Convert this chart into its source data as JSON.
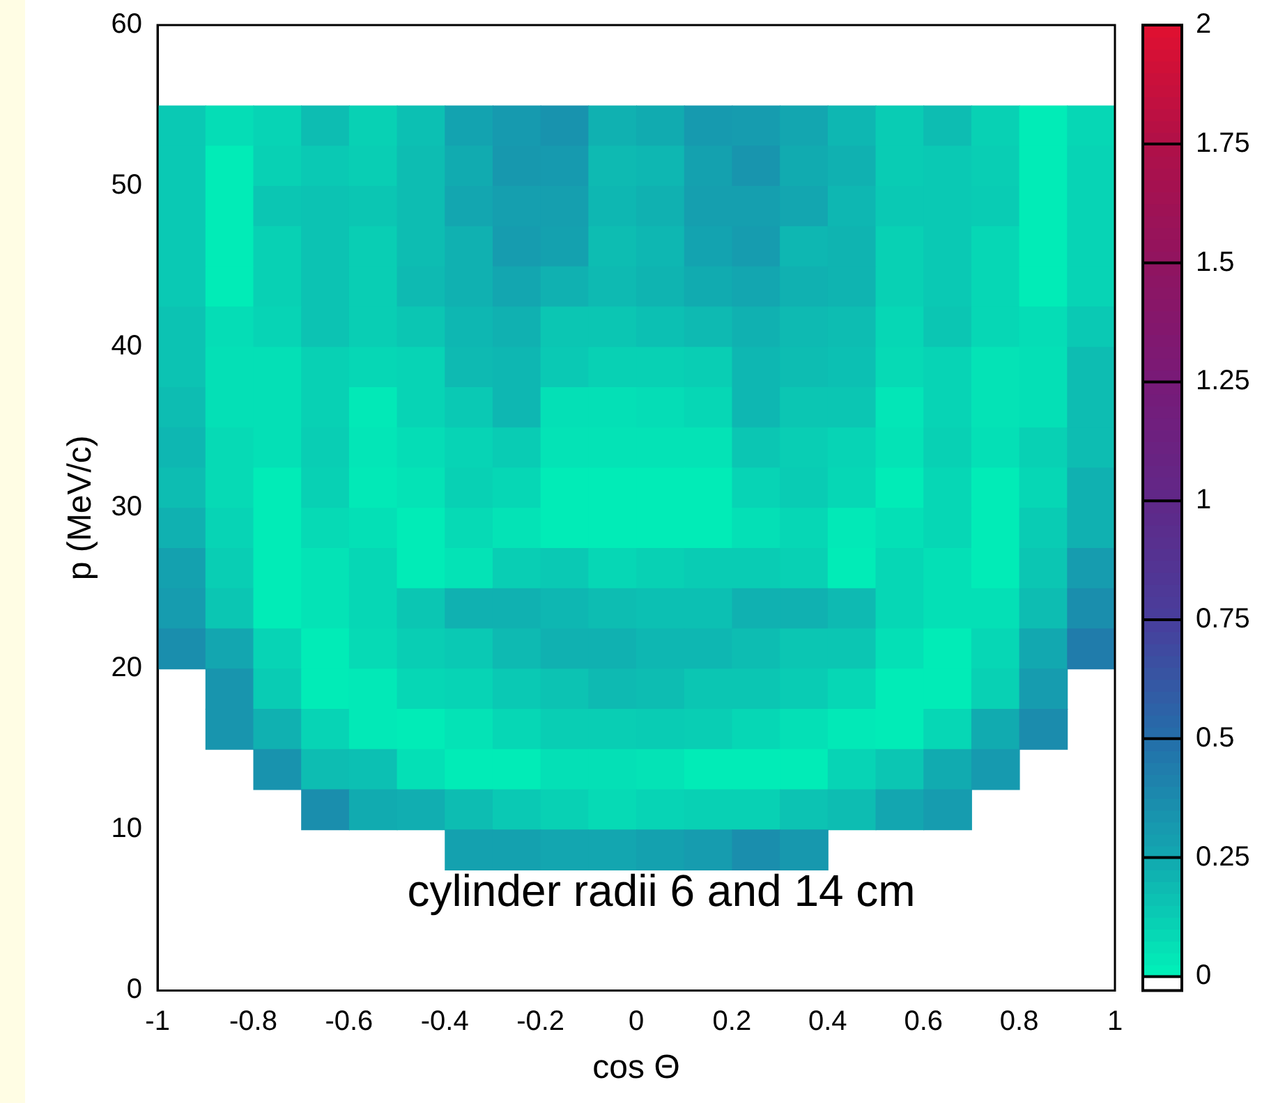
{
  "chart_data": {
    "type": "heatmap",
    "xlabel": "cos Θ",
    "ylabel": "p (MeV/c)",
    "x": [
      -0.95,
      -0.85,
      -0.75,
      -0.65,
      -0.55,
      -0.45,
      -0.35,
      -0.25,
      -0.15,
      -0.05,
      0.05,
      0.15,
      0.25,
      0.35,
      0.45,
      0.55,
      0.65,
      0.75,
      0.85,
      0.95
    ],
    "y": [
      53.75,
      51.25,
      48.75,
      46.25,
      43.75,
      41.25,
      38.75,
      36.25,
      33.75,
      31.25,
      28.75,
      26.25,
      23.75,
      21.25,
      18.75,
      16.25,
      13.75,
      11.25,
      8.75
    ],
    "xlim": [
      -1,
      1
    ],
    "xticks": [
      -1,
      -0.8,
      -0.6,
      -0.4,
      -0.2,
      0,
      0.2,
      0.4,
      0.6,
      0.8,
      1
    ],
    "ylim": [
      0,
      60
    ],
    "yticks": [
      0,
      10,
      20,
      30,
      40,
      50,
      60
    ],
    "clim": [
      0,
      2
    ],
    "cticks": [
      0,
      0.25,
      0.5,
      0.75,
      1,
      1.25,
      1.5,
      1.75,
      2
    ],
    "annotations": [
      "cylinder radii 6 and 14 cm"
    ],
    "grid": false,
    "cells": [
      [
        0.14,
        0.07,
        0.1,
        0.18,
        0.11,
        0.17,
        0.27,
        0.31,
        0.34,
        0.22,
        0.24,
        0.31,
        0.3,
        0.26,
        0.2,
        0.13,
        0.18,
        0.11,
        0.02,
        0.09
      ],
      [
        0.14,
        0.02,
        0.11,
        0.14,
        0.12,
        0.18,
        0.24,
        0.32,
        0.31,
        0.19,
        0.2,
        0.28,
        0.33,
        0.24,
        0.22,
        0.13,
        0.14,
        0.12,
        0.02,
        0.1
      ],
      [
        0.14,
        0.02,
        0.15,
        0.16,
        0.15,
        0.18,
        0.26,
        0.29,
        0.29,
        0.2,
        0.22,
        0.29,
        0.29,
        0.26,
        0.2,
        0.14,
        0.14,
        0.13,
        0.02,
        0.1
      ],
      [
        0.14,
        0.02,
        0.11,
        0.16,
        0.12,
        0.18,
        0.22,
        0.3,
        0.28,
        0.18,
        0.2,
        0.27,
        0.3,
        0.2,
        0.21,
        0.11,
        0.14,
        0.09,
        0.02,
        0.1
      ],
      [
        0.14,
        0.02,
        0.11,
        0.16,
        0.12,
        0.19,
        0.22,
        0.26,
        0.22,
        0.19,
        0.21,
        0.24,
        0.26,
        0.22,
        0.21,
        0.11,
        0.14,
        0.09,
        0.02,
        0.1
      ],
      [
        0.16,
        0.07,
        0.1,
        0.16,
        0.12,
        0.15,
        0.2,
        0.22,
        0.15,
        0.15,
        0.17,
        0.19,
        0.22,
        0.19,
        0.18,
        0.09,
        0.15,
        0.09,
        0.07,
        0.14
      ],
      [
        0.16,
        0.06,
        0.06,
        0.11,
        0.09,
        0.1,
        0.19,
        0.2,
        0.14,
        0.11,
        0.11,
        0.12,
        0.2,
        0.18,
        0.17,
        0.08,
        0.1,
        0.05,
        0.06,
        0.18
      ],
      [
        0.18,
        0.06,
        0.06,
        0.11,
        0.03,
        0.1,
        0.14,
        0.2,
        0.06,
        0.06,
        0.07,
        0.09,
        0.2,
        0.15,
        0.15,
        0.04,
        0.1,
        0.05,
        0.06,
        0.18
      ],
      [
        0.2,
        0.08,
        0.06,
        0.12,
        0.04,
        0.07,
        0.1,
        0.13,
        0.05,
        0.05,
        0.05,
        0.05,
        0.15,
        0.12,
        0.1,
        0.05,
        0.11,
        0.06,
        0.11,
        0.18
      ],
      [
        0.18,
        0.08,
        0.02,
        0.11,
        0.03,
        0.05,
        0.11,
        0.09,
        0.02,
        0.02,
        0.02,
        0.02,
        0.1,
        0.13,
        0.09,
        0.02,
        0.09,
        0.02,
        0.09,
        0.22
      ],
      [
        0.22,
        0.1,
        0.02,
        0.08,
        0.06,
        0.02,
        0.08,
        0.05,
        0.02,
        0.02,
        0.02,
        0.02,
        0.06,
        0.09,
        0.03,
        0.06,
        0.09,
        0.02,
        0.13,
        0.22
      ],
      [
        0.28,
        0.12,
        0.02,
        0.05,
        0.09,
        0.02,
        0.05,
        0.12,
        0.14,
        0.09,
        0.11,
        0.13,
        0.13,
        0.11,
        0.02,
        0.09,
        0.06,
        0.02,
        0.15,
        0.3
      ],
      [
        0.3,
        0.15,
        0.02,
        0.05,
        0.09,
        0.15,
        0.22,
        0.22,
        0.2,
        0.18,
        0.17,
        0.17,
        0.22,
        0.22,
        0.19,
        0.09,
        0.06,
        0.06,
        0.18,
        0.36
      ],
      [
        0.36,
        0.26,
        0.1,
        0.02,
        0.08,
        0.12,
        0.14,
        0.19,
        0.22,
        0.22,
        0.2,
        0.2,
        0.18,
        0.15,
        0.15,
        0.06,
        0.02,
        0.09,
        0.25,
        0.44
      ],
      [
        null,
        0.33,
        0.13,
        0.02,
        0.03,
        0.09,
        0.1,
        0.14,
        0.16,
        0.19,
        0.18,
        0.15,
        0.15,
        0.13,
        0.09,
        0.02,
        0.02,
        0.11,
        0.3,
        null
      ],
      [
        null,
        0.33,
        0.22,
        0.1,
        0.03,
        0.02,
        0.05,
        0.09,
        0.12,
        0.12,
        0.13,
        0.12,
        0.09,
        0.06,
        0.03,
        0.02,
        0.09,
        0.24,
        0.37,
        null
      ],
      [
        null,
        null,
        0.34,
        0.18,
        0.17,
        0.06,
        0.02,
        0.02,
        0.06,
        0.06,
        0.05,
        0.02,
        0.02,
        0.02,
        0.1,
        0.15,
        0.24,
        0.31,
        null,
        null
      ],
      [
        null,
        null,
        null,
        0.36,
        0.24,
        0.23,
        0.18,
        0.14,
        0.11,
        0.08,
        0.1,
        0.11,
        0.11,
        0.16,
        0.18,
        0.26,
        0.3,
        null,
        null,
        null
      ],
      [
        null,
        null,
        null,
        null,
        null,
        null,
        0.28,
        0.28,
        0.26,
        0.26,
        0.28,
        0.3,
        0.36,
        0.32,
        null,
        null,
        null,
        null,
        null,
        null
      ]
    ]
  }
}
